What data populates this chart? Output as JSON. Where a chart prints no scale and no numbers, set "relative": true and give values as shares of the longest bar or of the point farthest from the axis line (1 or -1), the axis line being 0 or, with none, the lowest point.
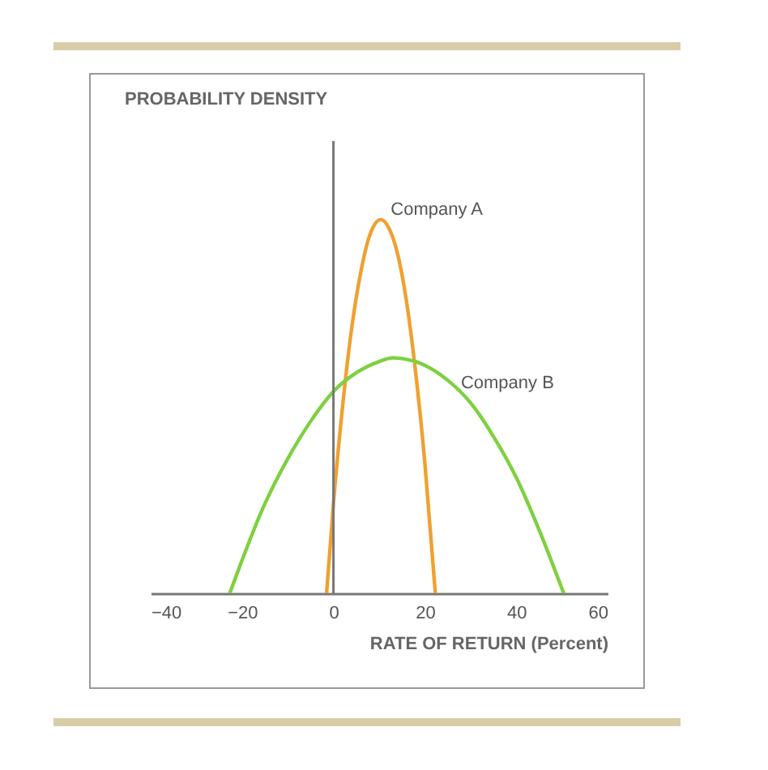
{
  "chart_data": {
    "type": "line",
    "relative": true,
    "annotations": [
      "PROBABILITY DENSITY"
    ],
    "xlabel": "RATE OF RETURN (Percent)",
    "xlim": [
      -40,
      60
    ],
    "xticks": [
      -40,
      -20,
      0,
      20,
      40,
      60
    ],
    "grid": false,
    "marker": "none",
    "ref_lines": [
      {
        "axis": "x",
        "value": 0,
        "color": "#777777"
      }
    ],
    "series": [
      {
        "name": "Company A",
        "color": "#f0a030",
        "x": [
          -1.5,
          0,
          2,
          4,
          6,
          8,
          10.4,
          12,
          14,
          16,
          18,
          20,
          22.3
        ],
        "values": [
          0,
          0.24,
          0.5,
          0.71,
          0.86,
          0.96,
          1,
          0.98,
          0.91,
          0.78,
          0.59,
          0.35,
          0
        ]
      },
      {
        "name": "Company B",
        "color": "#7ed040",
        "x": [
          -22.7,
          -15,
          -10,
          -5,
          0,
          5,
          10,
          13,
          20,
          25,
          30,
          35,
          40,
          45,
          50.4
        ],
        "values": [
          0,
          0.24,
          0.36,
          0.46,
          0.54,
          0.59,
          0.62,
          0.63,
          0.61,
          0.57,
          0.51,
          0.42,
          0.31,
          0.17,
          0
        ]
      }
    ]
  }
}
